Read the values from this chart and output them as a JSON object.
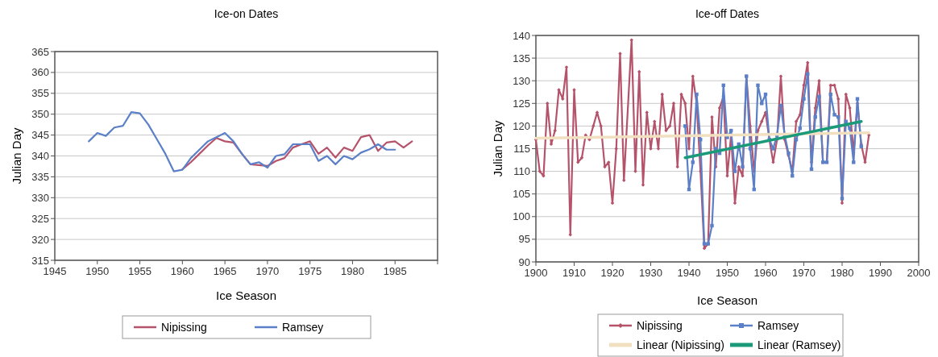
{
  "chart_data": [
    {
      "type": "line",
      "title": "Ice-on Dates",
      "xlabel": "Ice Season",
      "ylabel": "Julian Day",
      "xlim": [
        1945,
        1990
      ],
      "xticks": [
        1945,
        1950,
        1955,
        1960,
        1965,
        1970,
        1975,
        1980,
        1985,
        {
          "value": 1990,
          "label": null
        }
      ],
      "ylim": [
        315,
        365
      ],
      "yticks": [
        315,
        320,
        325,
        330,
        335,
        340,
        345,
        350,
        355,
        360,
        365
      ],
      "grid": "y",
      "legend": "bottom",
      "marker": "none",
      "series": [
        {
          "name": "Nipissing",
          "color": "#b5536b",
          "x": [
            1960,
            1961,
            1962,
            1963,
            1964,
            1965,
            1966,
            1967,
            1968,
            1969,
            1970,
            1971,
            1972,
            1973,
            1974,
            1975,
            1976,
            1977,
            1978,
            1979,
            1980,
            1981,
            1982,
            1983,
            1984,
            1985,
            1986,
            1987
          ],
          "values": [
            336.8,
            338.5,
            340.5,
            342.5,
            344.3,
            343.5,
            343.2,
            340.5,
            338,
            337.8,
            337.6,
            338.8,
            339.5,
            342,
            342.8,
            343.5,
            340.5,
            342,
            339.6,
            342,
            341.2,
            344.5,
            345,
            341.2,
            343.2,
            343.5,
            342,
            343.5
          ]
        },
        {
          "name": "Ramsey",
          "color": "#5b80c8",
          "x": [
            1949,
            1950,
            1951,
            1952,
            1953,
            1954,
            1955,
            1956,
            1957,
            1958,
            1959,
            1960,
            1961,
            1962,
            1963,
            1964,
            1965,
            1966,
            1967,
            1968,
            1969,
            1970,
            1971,
            1972,
            1973,
            1974,
            1975,
            1976,
            1977,
            1978,
            1979,
            1980,
            1981,
            1982,
            1983,
            1984,
            1985
          ],
          "values": [
            343.5,
            345.5,
            344.8,
            346.8,
            347.2,
            350.5,
            350.2,
            347.5,
            344,
            340.5,
            336.3,
            336.7,
            339.5,
            341.5,
            343.5,
            344.5,
            345.5,
            343.5,
            340.5,
            338,
            338.5,
            337.2,
            340,
            340.4,
            342.8,
            342.8,
            342.8,
            338.8,
            340,
            338,
            340,
            339.2,
            340.8,
            341.6,
            342.8,
            341.5,
            341.5
          ]
        }
      ]
    },
    {
      "type": "line",
      "title": "Ice-off Dates",
      "xlabel": "Ice Season",
      "ylabel": "Julian Day",
      "xlim": [
        1900,
        2000
      ],
      "xticks": [
        1900,
        1910,
        1920,
        1930,
        1940,
        1950,
        1960,
        1970,
        1980,
        1990,
        2000
      ],
      "ylim": [
        90,
        140
      ],
      "yticks": [
        90,
        95,
        100,
        105,
        110,
        115,
        120,
        125,
        130,
        135,
        140
      ],
      "grid": "y",
      "legend": "bottom",
      "series": [
        {
          "name": "Nipissing",
          "color": "#b5536b",
          "marker": "diamond",
          "x": [
            1900,
            1901,
            1902,
            1903,
            1904,
            1905,
            1906,
            1907,
            1908,
            1909,
            1910,
            1911,
            1912,
            1913,
            1914,
            1915,
            1916,
            1917,
            1918,
            1919,
            1920,
            1921,
            1922,
            1923,
            1925,
            1926,
            1927,
            1928,
            1929,
            1930,
            1931,
            1932,
            1933,
            1934,
            1935,
            1936,
            1937,
            1938,
            1939,
            1940,
            1941,
            1942,
            1943,
            1944,
            1945,
            1946,
            1947,
            1948,
            1949,
            1950,
            1951,
            1952,
            1953,
            1954,
            1955,
            1956,
            1957,
            1958,
            1959,
            1960,
            1961,
            1962,
            1963,
            1964,
            1965,
            1966,
            1967,
            1968,
            1969,
            1970,
            1971,
            1972,
            1973,
            1974,
            1975,
            1976,
            1977,
            1978,
            1979,
            1980,
            1981,
            1982,
            1983,
            1984,
            1985,
            1986,
            1987
          ],
          "values": [
            117,
            110,
            109,
            125,
            116,
            119,
            128,
            126,
            133,
            96,
            128,
            112,
            113,
            118,
            117,
            120,
            123,
            120,
            111,
            112,
            103,
            115,
            136,
            108,
            139,
            110,
            132,
            107,
            123,
            115,
            121,
            115,
            127,
            119,
            120,
            125,
            111,
            127,
            125,
            115,
            131,
            125,
            110,
            93,
            94,
            122,
            111,
            124,
            126.5,
            109,
            118,
            103,
            111,
            109,
            131,
            120,
            110,
            119,
            121,
            123,
            117,
            112,
            117,
            131,
            117,
            113.5,
            110,
            121,
            122.5,
            129,
            134,
            112,
            124,
            130,
            112,
            112,
            129,
            129,
            126,
            103,
            127,
            124,
            114,
            125,
            116,
            112,
            118
          ]
        },
        {
          "name": "Ramsey",
          "color": "#5b80c8",
          "marker": "square",
          "x": [
            1939,
            1940,
            1941,
            1942,
            1943,
            1944,
            1945,
            1946,
            1947,
            1948,
            1949,
            1950,
            1951,
            1952,
            1953,
            1954,
            1955,
            1956,
            1957,
            1958,
            1959,
            1960,
            1961,
            1962,
            1963,
            1964,
            1965,
            1966,
            1967,
            1968,
            1969,
            1970,
            1971,
            1972,
            1973,
            1974,
            1975,
            1976,
            1977,
            1978,
            1979,
            1980,
            1981,
            1982,
            1983,
            1984,
            1985
          ],
          "values": [
            120,
            106,
            112,
            127,
            117,
            94,
            94,
            98,
            115,
            114,
            129,
            117.5,
            119,
            110,
            116,
            111,
            131,
            115,
            106,
            129,
            125,
            127,
            117,
            115,
            118,
            124.5,
            118,
            114,
            109,
            117,
            119.5,
            126,
            131.5,
            110.5,
            122,
            126.5,
            112,
            112,
            127,
            122.5,
            122,
            104,
            121,
            119.5,
            112,
            126,
            115.5
          ]
        },
        {
          "name": "Linear (Nipissing)",
          "color": "#f0e0c0",
          "marker": "none",
          "x": [
            1900,
            1987
          ],
          "values": [
            117.3,
            118.5
          ]
        },
        {
          "name": "Linear (Ramsey)",
          "color": "#1a9a78",
          "marker": "none",
          "x": [
            1939,
            1985
          ],
          "values": [
            113,
            121
          ]
        }
      ]
    }
  ]
}
